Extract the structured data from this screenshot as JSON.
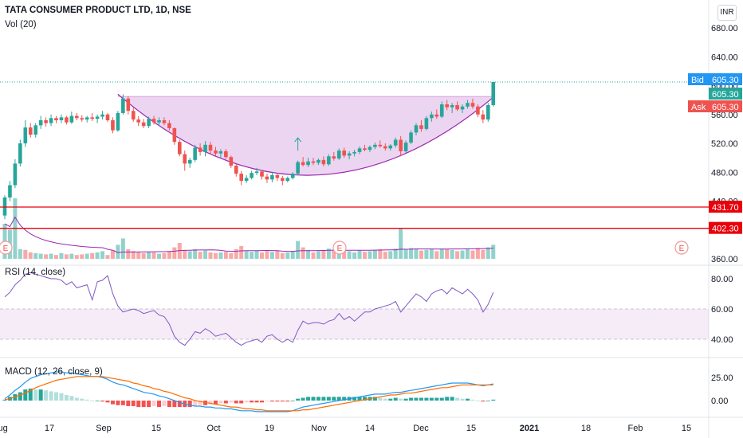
{
  "chart_data": [
    {
      "type": "candlestick",
      "title": "TATA CONSUMER PRODUCT LTD, 1D, NSE",
      "currency": "INR",
      "volume_label": "Vol (20)",
      "y_ticks": [
        "680.00",
        "640.00",
        "600.00",
        "560.00",
        "520.00",
        "480.00",
        "440.00",
        "400.00",
        "360.00"
      ],
      "ylim": [
        360,
        692
      ],
      "x_ticks": [
        "Aug",
        "17",
        "Sep",
        "15",
        "Oct",
        "19",
        "Nov",
        "14",
        "Dec",
        "15",
        "2021",
        "18",
        "Feb",
        "15"
      ],
      "x_ticks_bold": [
        "2021"
      ],
      "price_tags": [
        {
          "label": "Bid",
          "value": "605.30",
          "color": "#2196f3"
        },
        {
          "label": "",
          "value": "605.30",
          "color": "#26a69a"
        },
        {
          "label": "Ask",
          "value": "605.30",
          "color": "#ef5350"
        }
      ],
      "horizontal_lines": [
        {
          "value": 431.7,
          "label": "431.70",
          "color": "#e8000b"
        },
        {
          "value": 402.3,
          "label": "402.30",
          "color": "#e8000b"
        }
      ],
      "earnings_markers": [
        "E",
        "E",
        "E"
      ],
      "pattern": "cup",
      "candles": [
        [
          420,
          448,
          415,
          445
        ],
        [
          445,
          468,
          440,
          462
        ],
        [
          462,
          498,
          458,
          492
        ],
        [
          492,
          525,
          488,
          520
        ],
        [
          520,
          552,
          515,
          542
        ],
        [
          542,
          548,
          528,
          532
        ],
        [
          532,
          548,
          528,
          545
        ],
        [
          545,
          558,
          540,
          552
        ],
        [
          552,
          556,
          543,
          548
        ],
        [
          548,
          560,
          544,
          555
        ],
        [
          555,
          558,
          548,
          552
        ],
        [
          552,
          560,
          548,
          556
        ],
        [
          556,
          558,
          546,
          549
        ],
        [
          549,
          564,
          547,
          558
        ],
        [
          558,
          562,
          552,
          555
        ],
        [
          555,
          559,
          550,
          553
        ],
        [
          553,
          558,
          549,
          556
        ],
        [
          556,
          562,
          551,
          554
        ],
        [
          554,
          560,
          548,
          557
        ],
        [
          557,
          565,
          553,
          560
        ],
        [
          560,
          562,
          550,
          552
        ],
        [
          552,
          556,
          534,
          538
        ],
        [
          538,
          565,
          536,
          562
        ],
        [
          562,
          588,
          560,
          582
        ],
        [
          582,
          585,
          560,
          565
        ],
        [
          565,
          570,
          550,
          553
        ],
        [
          553,
          558,
          544,
          549
        ],
        [
          549,
          554,
          541,
          544
        ],
        [
          544,
          557,
          541,
          554
        ],
        [
          554,
          558,
          546,
          549
        ],
        [
          549,
          556,
          544,
          552
        ],
        [
          552,
          556,
          545,
          548
        ],
        [
          548,
          552,
          538,
          541
        ],
        [
          541,
          542,
          518,
          522
        ],
        [
          522,
          525,
          502,
          505
        ],
        [
          505,
          510,
          482,
          492
        ],
        [
          492,
          500,
          486,
          497
        ],
        [
          497,
          518,
          494,
          514
        ],
        [
          514,
          520,
          503,
          508
        ],
        [
          508,
          523,
          502,
          518
        ],
        [
          518,
          522,
          505,
          510
        ],
        [
          510,
          515,
          502,
          506
        ],
        [
          506,
          512,
          500,
          509
        ],
        [
          509,
          512,
          498,
          501
        ],
        [
          501,
          503,
          486,
          489
        ],
        [
          489,
          492,
          474,
          478
        ],
        [
          478,
          482,
          462,
          468
        ],
        [
          468,
          476,
          465,
          472
        ],
        [
          472,
          482,
          470,
          479
        ],
        [
          479,
          486,
          476,
          481
        ],
        [
          481,
          483,
          470,
          474
        ],
        [
          474,
          478,
          465,
          470
        ],
        [
          470,
          480,
          466,
          476
        ],
        [
          476,
          479,
          468,
          472
        ],
        [
          472,
          475,
          462,
          468
        ],
        [
          468,
          474,
          466,
          472
        ],
        [
          472,
          480,
          470,
          478
        ],
        [
          478,
          496,
          476,
          494
        ],
        [
          494,
          501,
          488,
          490
        ],
        [
          490,
          500,
          487,
          495
        ],
        [
          495,
          500,
          490,
          493
        ],
        [
          493,
          499,
          490,
          497
        ],
        [
          497,
          502,
          488,
          491
        ],
        [
          491,
          505,
          489,
          502
        ],
        [
          502,
          508,
          496,
          499
        ],
        [
          499,
          513,
          497,
          510
        ],
        [
          510,
          514,
          500,
          503
        ],
        [
          503,
          509,
          498,
          506
        ],
        [
          506,
          511,
          502,
          508
        ],
        [
          508,
          516,
          505,
          513
        ],
        [
          513,
          518,
          509,
          511
        ],
        [
          511,
          517,
          508,
          515
        ],
        [
          515,
          521,
          512,
          518
        ],
        [
          518,
          524,
          514,
          516
        ],
        [
          516,
          520,
          510,
          513
        ],
        [
          513,
          519,
          510,
          517
        ],
        [
          517,
          528,
          514,
          525
        ],
        [
          525,
          530,
          502,
          509
        ],
        [
          509,
          524,
          507,
          521
        ],
        [
          521,
          538,
          519,
          535
        ],
        [
          535,
          548,
          531,
          545
        ],
        [
          545,
          552,
          536,
          540
        ],
        [
          540,
          558,
          538,
          555
        ],
        [
          555,
          564,
          550,
          560
        ],
        [
          560,
          567,
          554,
          557
        ],
        [
          557,
          578,
          555,
          574
        ],
        [
          574,
          580,
          566,
          570
        ],
        [
          570,
          576,
          562,
          573
        ],
        [
          573,
          578,
          565,
          567
        ],
        [
          567,
          574,
          562,
          571
        ],
        [
          571,
          580,
          568,
          576
        ],
        [
          576,
          582,
          568,
          571
        ],
        [
          571,
          574,
          556,
          560
        ],
        [
          560,
          566,
          548,
          553
        ],
        [
          553,
          576,
          550,
          573
        ],
        [
          573,
          605,
          571,
          605
        ]
      ],
      "volume": [
        [
          55,
          1
        ],
        [
          46,
          1
        ],
        [
          95,
          1
        ],
        [
          15,
          1
        ],
        [
          14,
          0
        ],
        [
          10,
          0
        ],
        [
          9,
          1
        ],
        [
          8,
          1
        ],
        [
          7,
          0
        ],
        [
          8,
          1
        ],
        [
          6,
          0
        ],
        [
          9,
          1
        ],
        [
          7,
          0
        ],
        [
          8,
          1
        ],
        [
          6,
          0
        ],
        [
          7,
          0
        ],
        [
          8,
          1
        ],
        [
          9,
          0
        ],
        [
          10,
          1
        ],
        [
          12,
          1
        ],
        [
          6,
          0
        ],
        [
          14,
          0
        ],
        [
          22,
          1
        ],
        [
          32,
          1
        ],
        [
          15,
          0
        ],
        [
          12,
          0
        ],
        [
          10,
          0
        ],
        [
          9,
          0
        ],
        [
          11,
          1
        ],
        [
          10,
          0
        ],
        [
          8,
          1
        ],
        [
          9,
          0
        ],
        [
          12,
          0
        ],
        [
          18,
          0
        ],
        [
          25,
          0
        ],
        [
          14,
          0
        ],
        [
          12,
          1
        ],
        [
          15,
          1
        ],
        [
          11,
          0
        ],
        [
          13,
          1
        ],
        [
          10,
          0
        ],
        [
          9,
          0
        ],
        [
          10,
          1
        ],
        [
          11,
          0
        ],
        [
          9,
          0
        ],
        [
          15,
          0
        ],
        [
          20,
          0
        ],
        [
          12,
          1
        ],
        [
          11,
          1
        ],
        [
          13,
          1
        ],
        [
          10,
          0
        ],
        [
          12,
          0
        ],
        [
          11,
          1
        ],
        [
          13,
          0
        ],
        [
          9,
          0
        ],
        [
          10,
          1
        ],
        [
          12,
          1
        ],
        [
          28,
          1
        ],
        [
          18,
          0
        ],
        [
          14,
          1
        ],
        [
          10,
          0
        ],
        [
          12,
          1
        ],
        [
          13,
          0
        ],
        [
          16,
          1
        ],
        [
          14,
          0
        ],
        [
          17,
          1
        ],
        [
          15,
          0
        ],
        [
          12,
          1
        ],
        [
          10,
          1
        ],
        [
          13,
          1
        ],
        [
          11,
          0
        ],
        [
          12,
          1
        ],
        [
          14,
          1
        ],
        [
          15,
          0
        ],
        [
          11,
          0
        ],
        [
          12,
          1
        ],
        [
          16,
          1
        ],
        [
          48,
          1
        ],
        [
          15,
          1
        ],
        [
          17,
          1
        ],
        [
          16,
          1
        ],
        [
          13,
          0
        ],
        [
          14,
          1
        ],
        [
          15,
          1
        ],
        [
          12,
          0
        ],
        [
          16,
          1
        ],
        [
          15,
          0
        ],
        [
          14,
          1
        ],
        [
          12,
          0
        ],
        [
          13,
          1
        ],
        [
          15,
          1
        ],
        [
          13,
          0
        ],
        [
          17,
          0
        ],
        [
          14,
          0
        ],
        [
          18,
          1
        ],
        [
          22,
          1
        ]
      ],
      "rsi": {
        "label": "RSI (14, close)",
        "y_ticks": [
          "80.00",
          "60.00",
          "40.00"
        ],
        "band": [
          40,
          60
        ],
        "values": [
          68,
          71,
          76,
          79,
          83,
          84,
          83,
          82,
          81,
          80,
          80,
          79,
          76,
          78,
          74,
          75,
          76,
          66,
          78,
          79,
          82,
          70,
          62,
          58,
          59,
          60,
          59,
          57,
          58,
          59,
          56,
          55,
          50,
          42,
          38,
          36,
          40,
          45,
          44,
          47,
          45,
          42,
          43,
          44,
          41,
          38,
          36,
          38,
          39,
          40,
          38,
          42,
          43,
          40,
          38,
          40,
          38,
          46,
          52,
          50,
          51,
          51,
          50,
          52,
          53,
          57,
          53,
          55,
          52,
          55,
          58,
          58,
          60,
          61,
          62,
          63,
          65,
          58,
          62,
          66,
          70,
          68,
          65,
          70,
          72,
          73,
          70,
          74,
          72,
          70,
          73,
          70,
          66,
          58,
          63,
          71
        ]
      },
      "macd": {
        "label": "MACD (12, 26, close, 9)",
        "y_ticks": [
          "25.00",
          "0.00"
        ],
        "macd": [
          2,
          6,
          11,
          15,
          20,
          24,
          26,
          28,
          29,
          30,
          31,
          31,
          30,
          30,
          29,
          28,
          27,
          26,
          26,
          25,
          23,
          20,
          18,
          17,
          15,
          13,
          11,
          9,
          8,
          7,
          5,
          4,
          2,
          0,
          -2,
          -4,
          -5,
          -6,
          -6,
          -7,
          -7,
          -8,
          -8,
          -9,
          -9,
          -10,
          -11,
          -11,
          -11,
          -12,
          -12,
          -12,
          -12,
          -12,
          -12,
          -12,
          -11,
          -9,
          -7,
          -6,
          -5,
          -4,
          -3,
          -2,
          -1,
          0,
          1,
          2,
          3,
          4,
          5,
          6,
          7,
          7,
          7,
          8,
          9,
          9,
          10,
          11,
          12,
          13,
          14,
          15,
          16,
          17,
          18,
          19,
          19,
          19,
          19,
          18,
          17,
          16,
          17,
          18
        ],
        "signal": [
          1,
          2,
          4,
          6,
          8,
          11,
          14,
          16,
          18,
          20,
          22,
          23,
          24,
          25,
          26,
          26,
          26,
          26,
          26,
          26,
          25,
          24,
          23,
          22,
          21,
          19,
          18,
          16,
          15,
          13,
          12,
          10,
          9,
          7,
          5,
          3,
          2,
          0,
          -1,
          -2,
          -3,
          -4,
          -5,
          -6,
          -7,
          -7,
          -8,
          -9,
          -9,
          -10,
          -10,
          -11,
          -11,
          -11,
          -11,
          -11,
          -11,
          -11,
          -10,
          -10,
          -9,
          -8,
          -7,
          -6,
          -5,
          -4,
          -3,
          -2,
          -1,
          0,
          1,
          2,
          3,
          4,
          5,
          6,
          6,
          7,
          8,
          8,
          9,
          10,
          11,
          12,
          13,
          14,
          14,
          15,
          16,
          17,
          17,
          17,
          17,
          17,
          17,
          17
        ]
      }
    }
  ]
}
